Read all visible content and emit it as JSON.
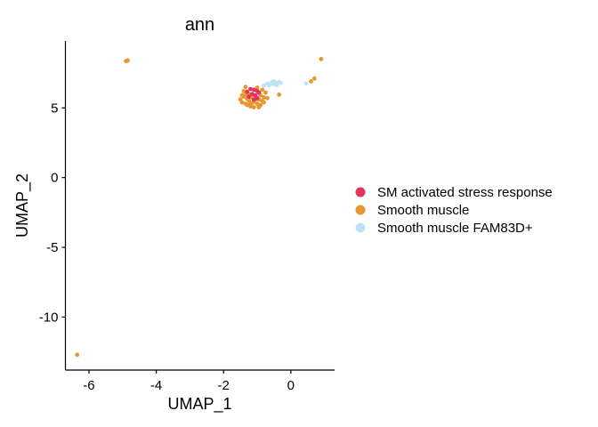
{
  "chart_data": {
    "type": "scatter",
    "title": "ann",
    "xlabel": "UMAP_1",
    "ylabel": "UMAP_2",
    "xlim": [
      -6.7,
      1.3
    ],
    "ylim": [
      -13.8,
      9.8
    ],
    "xticks": [
      -6,
      -4,
      -2,
      0
    ],
    "yticks": [
      -10,
      -5,
      0,
      5
    ],
    "tick_labels_x": [
      "-6",
      "-4",
      "-2",
      "0"
    ],
    "tick_labels_y": [
      "-10",
      "-5",
      "0",
      "5"
    ],
    "grid": false,
    "legend_position": "right",
    "series": [
      {
        "name": "SM activated stress response",
        "color": "#E0335E",
        "points": [
          [
            -1.2,
            6.35
          ],
          [
            -1.1,
            6.3
          ],
          [
            -1.0,
            6.2
          ],
          [
            -1.15,
            6.0
          ],
          [
            -1.05,
            5.9
          ],
          [
            -1.25,
            5.8
          ],
          [
            -1.0,
            5.7
          ],
          [
            -1.1,
            5.6
          ],
          [
            -0.95,
            6.1
          ],
          [
            -1.3,
            6.15
          ]
        ]
      },
      {
        "name": "Smooth muscle",
        "color": "#E8962E",
        "points": [
          [
            -6.35,
            -12.7
          ],
          [
            -4.85,
            8.4
          ],
          [
            -4.9,
            8.35
          ],
          [
            0.9,
            8.5
          ],
          [
            0.7,
            7.1
          ],
          [
            0.6,
            6.9
          ],
          [
            -0.35,
            5.95
          ],
          [
            -0.7,
            5.7
          ],
          [
            -1.35,
            6.5
          ],
          [
            -1.4,
            6.2
          ],
          [
            -1.45,
            5.9
          ],
          [
            -1.5,
            5.6
          ],
          [
            -1.45,
            5.4
          ],
          [
            -1.35,
            5.3
          ],
          [
            -1.3,
            5.2
          ],
          [
            -1.25,
            5.5
          ],
          [
            -1.2,
            5.75
          ],
          [
            -1.2,
            5.1
          ],
          [
            -1.1,
            5.45
          ],
          [
            -1.1,
            5.05
          ],
          [
            -1.05,
            5.85
          ],
          [
            -1.0,
            5.3
          ],
          [
            -0.95,
            5.6
          ],
          [
            -0.9,
            5.2
          ],
          [
            -0.9,
            5.9
          ],
          [
            -0.85,
            5.5
          ],
          [
            -0.85,
            6.3
          ],
          [
            -0.8,
            5.75
          ],
          [
            -0.8,
            5.4
          ],
          [
            -1.15,
            5.9
          ],
          [
            -1.3,
            5.65
          ],
          [
            -1.4,
            5.8
          ],
          [
            -1.0,
            6.45
          ],
          [
            -0.95,
            5.05
          ],
          [
            -1.2,
            5.3
          ],
          [
            -1.05,
            5.6
          ],
          [
            -1.35,
            5.95
          ],
          [
            -0.75,
            6.1
          ],
          [
            -1.25,
            6.0
          ],
          [
            -1.15,
            5.35
          ]
        ]
      },
      {
        "name": "Smooth muscle FAM83D+",
        "color": "#BFE3F1",
        "points": [
          [
            -0.6,
            6.75
          ],
          [
            -0.55,
            6.85
          ],
          [
            -0.5,
            6.7
          ],
          [
            -0.45,
            6.8
          ],
          [
            -0.4,
            6.75
          ],
          [
            -0.35,
            6.85
          ],
          [
            -0.3,
            6.8
          ],
          [
            -0.65,
            6.6
          ],
          [
            -0.7,
            6.75
          ],
          [
            -0.5,
            6.9
          ],
          [
            0.45,
            6.75
          ],
          [
            -0.8,
            6.6
          ],
          [
            -0.42,
            6.65
          ]
        ]
      }
    ]
  }
}
